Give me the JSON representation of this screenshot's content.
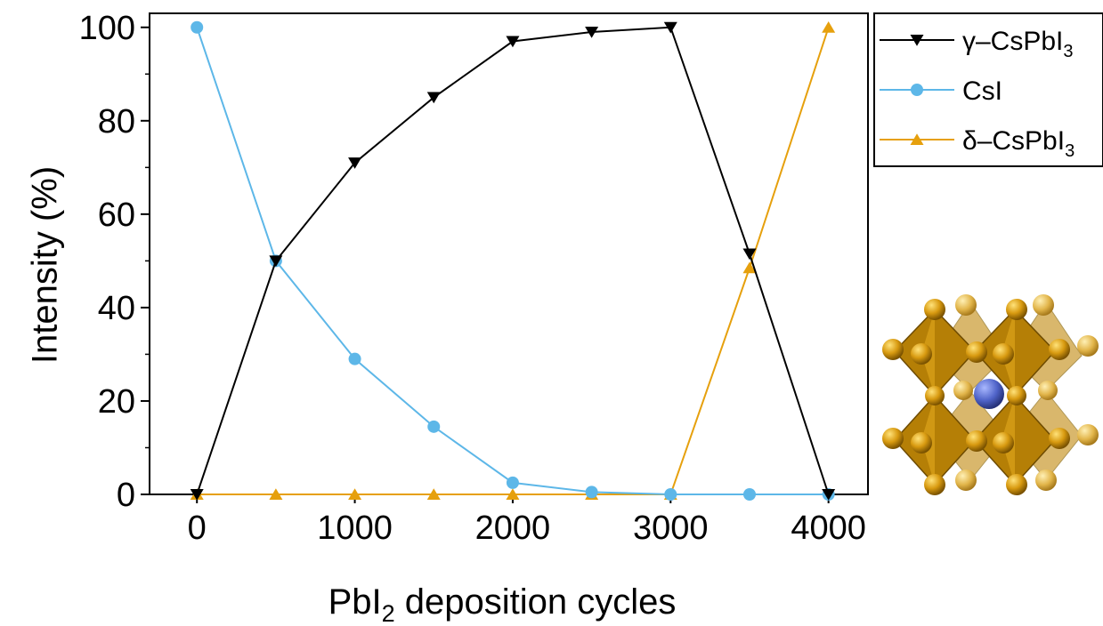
{
  "chart_data": {
    "type": "line",
    "xlabel": "PbI",
    "xlabel_subscript": "2",
    "xlabel_suffix": " deposition cycles",
    "ylabel": "Intensity (%)",
    "xlim": [
      -300,
      4250
    ],
    "ylim": [
      0,
      103
    ],
    "x_ticks": [
      0,
      1000,
      2000,
      3000,
      4000
    ],
    "y_ticks": [
      0,
      20,
      40,
      60,
      80,
      100
    ],
    "x_tick_labels": [
      "0",
      "1000",
      "2000",
      "3000",
      "4000"
    ],
    "y_tick_labels": [
      "0",
      "20",
      "40",
      "60",
      "80",
      "100"
    ],
    "x": [
      0,
      500,
      1000,
      1500,
      2000,
      2500,
      3000,
      3500,
      4000
    ],
    "legend_position": "top-right, outside plot",
    "series": [
      {
        "name_prefix": "γ–CsPbI",
        "name_subscript": "3",
        "color": "#000000",
        "marker": "triangle-down",
        "values": [
          0,
          50,
          71,
          85,
          97,
          99,
          100,
          51.5,
          0
        ]
      },
      {
        "name_prefix": "CsI",
        "name_subscript": "",
        "color": "#5DB7E8",
        "marker": "circle",
        "values": [
          100,
          50,
          29,
          14.5,
          2.5,
          0.5,
          0,
          0,
          0
        ]
      },
      {
        "name_prefix": "δ–CsPbI",
        "name_subscript": "3",
        "color": "#E6A00D",
        "marker": "triangle-up",
        "values": [
          0,
          0,
          0,
          0,
          0,
          0,
          0,
          48.5,
          100
        ]
      }
    ]
  }
}
